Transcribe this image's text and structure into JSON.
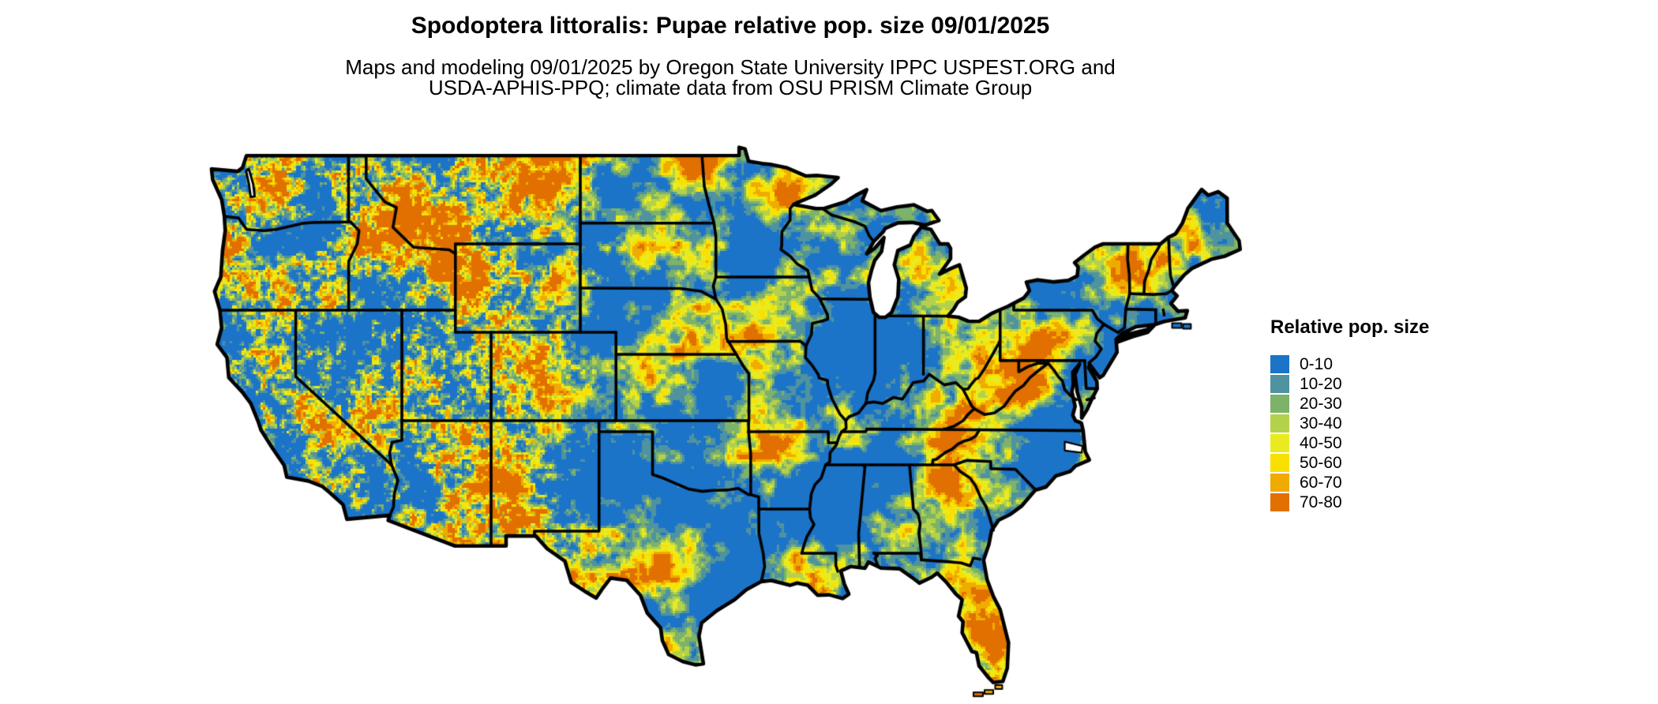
{
  "header": {
    "title": "Spodoptera littoralis: Pupae relative pop. size 09/01/2025",
    "subtitle_line1": "Maps and modeling 09/01/2025 by Oregon State University IPPC USPEST.ORG and",
    "subtitle_line2": "USDA-APHIS-PPQ; climate data from OSU PRISM Climate Group"
  },
  "legend": {
    "title": "Relative pop. size",
    "items": [
      {
        "label": "0-10",
        "color": "#1b74c8"
      },
      {
        "label": "10-20",
        "color": "#4f92a0"
      },
      {
        "label": "20-30",
        "color": "#7cb26a"
      },
      {
        "label": "30-40",
        "color": "#b4d14b"
      },
      {
        "label": "40-50",
        "color": "#e9eb20"
      },
      {
        "label": "50-60",
        "color": "#f9e000"
      },
      {
        "label": "60-70",
        "color": "#f0ab00"
      },
      {
        "label": "70-80",
        "color": "#e17000"
      }
    ]
  },
  "map": {
    "region": "Continental United States",
    "type": "raster population-size map",
    "border_color": "#000000",
    "water_color": "#ffffff"
  }
}
